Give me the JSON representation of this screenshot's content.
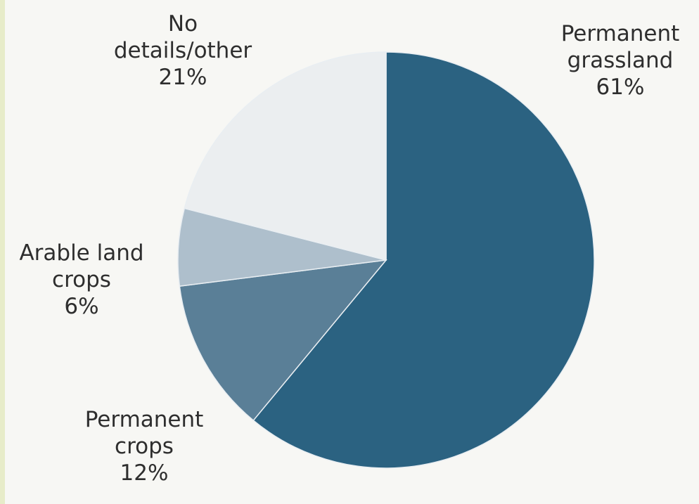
{
  "chart_data": {
    "type": "pie",
    "start": "12 o'clock",
    "direction": "clockwise",
    "slices": [
      {
        "name": "Permanent grassland",
        "value": 61,
        "label_lines": [
          "Permanent",
          "grassland"
        ],
        "percent_text": "61%",
        "color": "#2b6281"
      },
      {
        "name": "Permanent crops",
        "value": 12,
        "label_lines": [
          "Permanent",
          "crops"
        ],
        "percent_text": "12%",
        "color": "#5a7f97"
      },
      {
        "name": "Arable land crops",
        "value": 6,
        "label_lines": [
          "Arable land",
          "crops"
        ],
        "percent_text": "6%",
        "color": "#aebfcc"
      },
      {
        "name": "No details/other",
        "value": 21,
        "label_lines": [
          "No",
          "details/other"
        ],
        "percent_text": "21%",
        "color": "#ebeef0"
      }
    ]
  },
  "colors": {
    "background": "#f7f7f4",
    "left_strip": "#e7ecc9",
    "separator": "#e9eef2"
  }
}
